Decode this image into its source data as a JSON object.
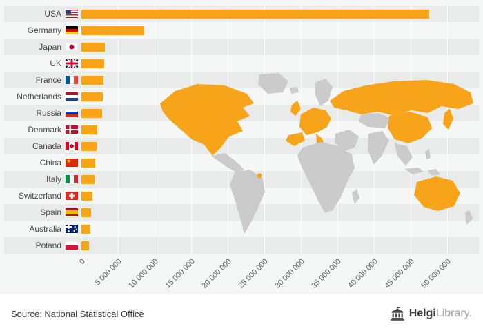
{
  "chart_data": {
    "type": "bar",
    "orientation": "horizontal",
    "title": "",
    "xlabel": "",
    "ylabel": "",
    "legend": "none",
    "grid": "vertical-light",
    "categories": [
      "USA",
      "Germany",
      "Japan",
      "UK",
      "France",
      "Netherlands",
      "Russia",
      "Denmark",
      "Canada",
      "China",
      "Italy",
      "Switzerland",
      "Spain",
      "Australia",
      "Poland"
    ],
    "values": [
      47500000,
      8600000,
      3200000,
      3100000,
      3000000,
      2900000,
      2800000,
      2200000,
      2100000,
      1900000,
      1800000,
      1500000,
      1300000,
      1200000,
      1000000
    ],
    "flags": [
      "usa",
      "germany",
      "japan",
      "uk",
      "france",
      "netherlands",
      "russia",
      "denmark",
      "canada",
      "china",
      "italy",
      "switzerland",
      "spain",
      "australia",
      "poland"
    ],
    "xlim": [
      0,
      50000000
    ],
    "x_tick_labels": [
      "0",
      "5 000 000",
      "10 000 000",
      "15 000 000",
      "20 000 000",
      "25 000 000",
      "30 000 000",
      "35 000 000",
      "40 000 000",
      "45 000 000",
      "50 000 000"
    ],
    "bar_color": "#F8A41B",
    "map_land_color": "#CBCBCB",
    "map_highlight_color": "#F8A41B",
    "background_color": "#F5F6F6",
    "stripe_color": "#E9EAEA"
  },
  "footer": {
    "source": "Source: National Statistical Office",
    "logo_bold": "Helgi",
    "logo_light": "Library."
  }
}
